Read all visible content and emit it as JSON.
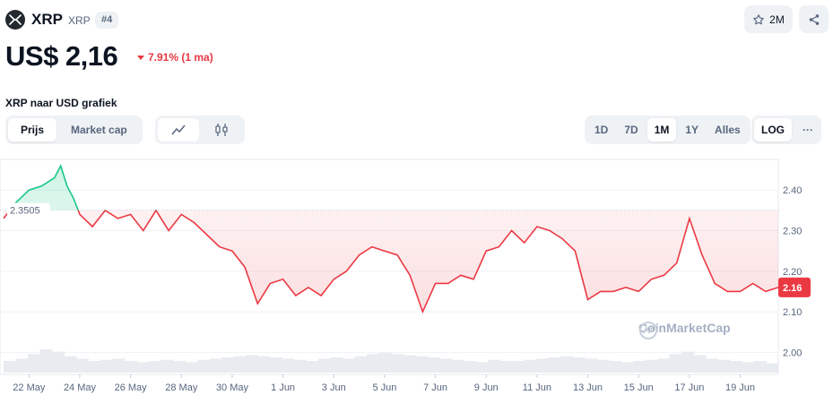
{
  "coin": {
    "name": "XRP",
    "symbol": "XRP",
    "rank": "#4"
  },
  "header": {
    "watchlist_count": "2M"
  },
  "price": {
    "value": "US$ 2,16",
    "change": "7.91% (1 ma)"
  },
  "chart_title": "XRP naar USD grafiek",
  "tabs": {
    "price": "Prijs",
    "market_cap": "Market cap"
  },
  "ranges": [
    "1D",
    "7D",
    "1M",
    "1Y",
    "Alles"
  ],
  "log_label": "LOG",
  "more_label": "···",
  "watermark": "CoinMarketCap",
  "colors": {
    "up": "#16c784",
    "down": "#ea3943",
    "grid": "#eff2f5",
    "axis_text": "#58667e"
  },
  "chart_data": {
    "type": "area",
    "start_label": "2.3505",
    "current_label": "2.16",
    "ylim": [
      1.95,
      2.48
    ],
    "yticks": [
      "2.40",
      "2.30",
      "2.20",
      "2.10",
      "2.00"
    ],
    "xticks": [
      "22 May",
      "24 May",
      "26 May",
      "28 May",
      "30 May",
      "1 Jun",
      "3 Jun",
      "5 Jun",
      "7 Jun",
      "9 Jun",
      "11 Jun",
      "13 Jun",
      "15 Jun",
      "17 Jun",
      "19 Jun"
    ],
    "series": [
      {
        "x": [
          "2025-05-21 00:00",
          "2025-05-21 12:00",
          "2025-05-22 00:00",
          "2025-05-22 12:00",
          "2025-05-23 00:00",
          "2025-05-23 06:00",
          "2025-05-23 12:00",
          "2025-05-23 18:00",
          "2025-05-24 00:00",
          "2025-05-24 12:00",
          "2025-05-25 00:00",
          "2025-05-25 12:00",
          "2025-05-26 00:00",
          "2025-05-26 12:00",
          "2025-05-27 00:00",
          "2025-05-27 12:00",
          "2025-05-28 00:00",
          "2025-05-28 12:00",
          "2025-05-29 00:00",
          "2025-05-29 12:00",
          "2025-05-30 00:00",
          "2025-05-30 12:00",
          "2025-05-31 00:00",
          "2025-05-31 12:00",
          "2025-06-01 00:00",
          "2025-06-01 12:00",
          "2025-06-02 00:00",
          "2025-06-02 12:00",
          "2025-06-03 00:00",
          "2025-06-03 12:00",
          "2025-06-04 00:00",
          "2025-06-04 12:00",
          "2025-06-05 00:00",
          "2025-06-05 12:00",
          "2025-06-06 00:00",
          "2025-06-06 12:00",
          "2025-06-07 00:00",
          "2025-06-07 12:00",
          "2025-06-08 00:00",
          "2025-06-08 12:00",
          "2025-06-09 00:00",
          "2025-06-09 12:00",
          "2025-06-10 00:00",
          "2025-06-10 12:00",
          "2025-06-11 00:00",
          "2025-06-11 12:00",
          "2025-06-12 00:00",
          "2025-06-12 12:00",
          "2025-06-13 00:00",
          "2025-06-13 12:00",
          "2025-06-14 00:00",
          "2025-06-14 12:00",
          "2025-06-15 00:00",
          "2025-06-15 12:00",
          "2025-06-16 00:00",
          "2025-06-16 12:00",
          "2025-06-17 00:00",
          "2025-06-17 12:00",
          "2025-06-18 00:00",
          "2025-06-18 12:00",
          "2025-06-19 00:00",
          "2025-06-19 12:00",
          "2025-06-20 00:00",
          "2025-06-20 12:00"
        ],
        "values": [
          2.33,
          2.37,
          2.4,
          2.41,
          2.43,
          2.46,
          2.41,
          2.38,
          2.34,
          2.31,
          2.35,
          2.33,
          2.34,
          2.3,
          2.35,
          2.3,
          2.34,
          2.32,
          2.29,
          2.26,
          2.25,
          2.21,
          2.12,
          2.17,
          2.18,
          2.14,
          2.16,
          2.14,
          2.18,
          2.2,
          2.24,
          2.26,
          2.25,
          2.24,
          2.19,
          2.1,
          2.17,
          2.17,
          2.19,
          2.18,
          2.25,
          2.26,
          2.3,
          2.27,
          2.31,
          2.3,
          2.28,
          2.25,
          2.13,
          2.15,
          2.15,
          2.16,
          2.15,
          2.18,
          2.19,
          2.22,
          2.33,
          2.24,
          2.17,
          2.15,
          2.15,
          2.17,
          2.15,
          2.16
        ]
      }
    ],
    "volume": [
      0.5,
      0.6,
      0.8,
      1.0,
      0.9,
      0.7,
      0.6,
      0.5,
      0.55,
      0.6,
      0.5,
      0.45,
      0.5,
      0.55,
      0.5,
      0.45,
      0.55,
      0.6,
      0.65,
      0.7,
      0.75,
      0.7,
      0.65,
      0.6,
      0.55,
      0.5,
      0.6,
      0.65,
      0.6,
      0.7,
      0.8,
      0.85,
      0.8,
      0.75,
      0.7,
      0.65,
      0.6,
      0.55,
      0.5,
      0.45,
      0.55,
      0.5,
      0.5,
      0.55,
      0.6,
      0.65,
      0.7,
      0.65,
      0.6,
      0.55,
      0.5,
      0.45,
      0.5,
      0.55,
      0.6,
      0.8,
      0.9,
      0.75,
      0.6,
      0.55,
      0.5,
      0.45,
      0.5,
      0.4
    ]
  }
}
